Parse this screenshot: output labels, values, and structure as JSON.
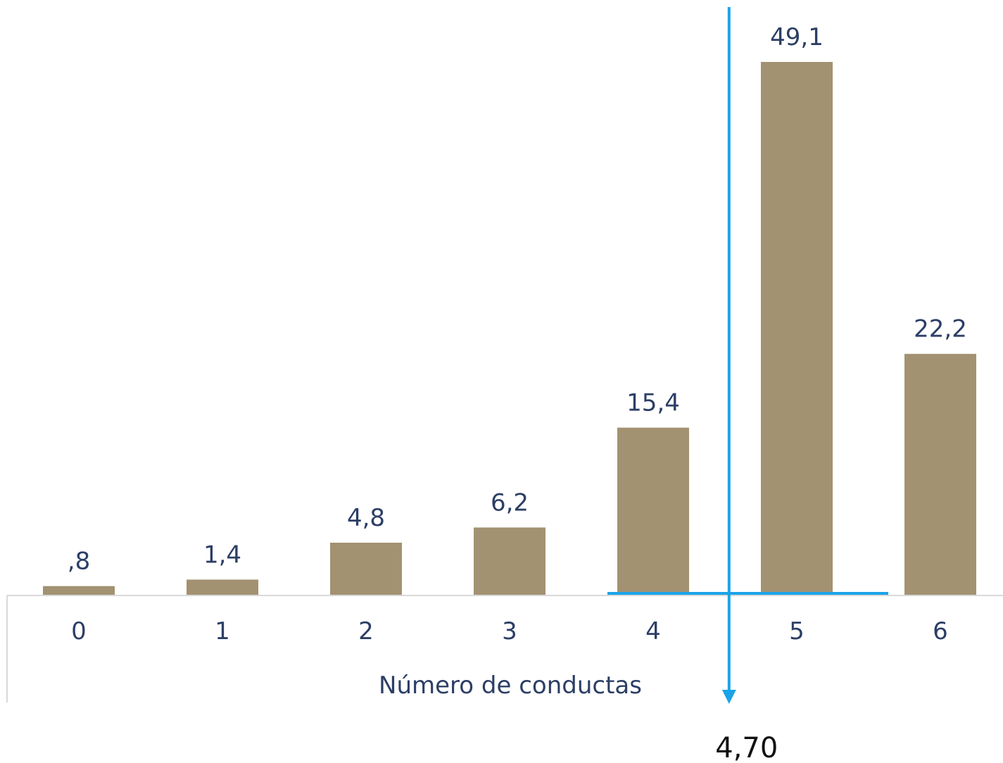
{
  "chart_data": {
    "type": "bar",
    "categories": [
      "0",
      "1",
      "2",
      "3",
      "4",
      "5",
      "6"
    ],
    "values": [
      0.8,
      1.4,
      4.8,
      6.2,
      15.4,
      49.1,
      22.2
    ],
    "data_labels": [
      ",8",
      "1,4",
      "4,8",
      "6,2",
      "15,4",
      "49,1",
      "22,2"
    ],
    "xlabel": "Número de conductas",
    "ylabel": "",
    "ylim": [
      0,
      52
    ],
    "grid": false,
    "legend": "none",
    "bar_color": "#a39271",
    "mean_marker": {
      "value": 4.7,
      "label": "4,70",
      "color": "#1aa3e8"
    }
  },
  "colors": {
    "text": "#2c3e66",
    "axis": "#d9d9d9"
  }
}
